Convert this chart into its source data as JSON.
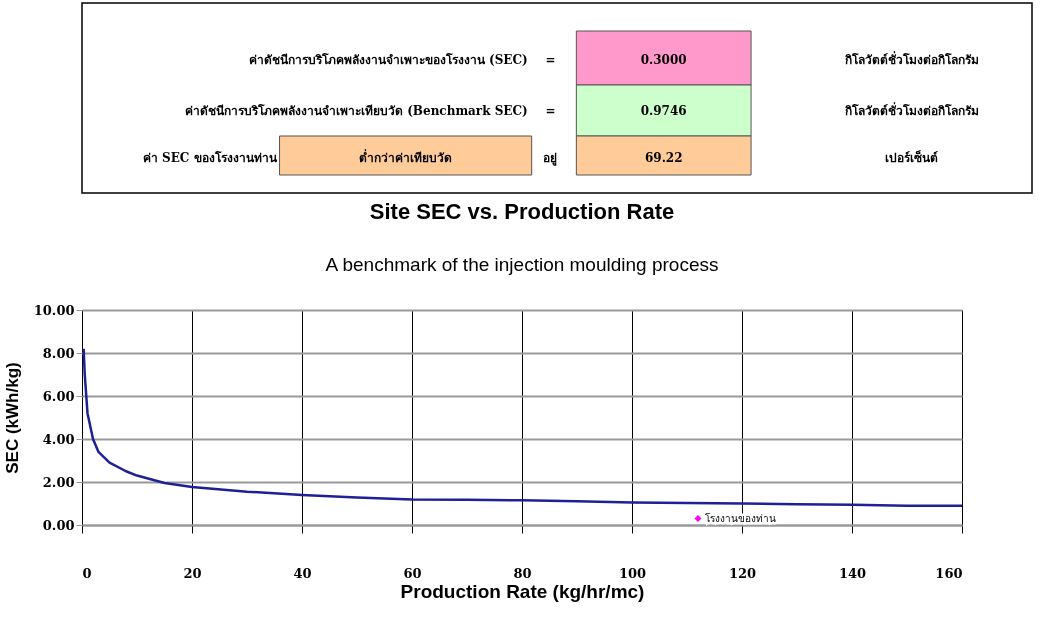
{
  "chart_data": [
    {
      "type": "other",
      "annotations": [
        "ค่าดัชนีการบริโภคพลังงานจำเพาะของโรงงาน (SEC)",
        "=",
        "0.3000",
        "กิโลวัตต์ชั่วโมงต่อกิโลกรัม",
        "ค่าดัชนีการบริโภคพลังงานจำเพาะเทียบวัด (Benchmark SEC)",
        "=",
        "0.9746",
        "กิโลวัตต์ชั่วโมงต่อกิโลกรัม",
        "ค่า SEC ของโรงงานท่าน",
        "ต่ำกว่าค่าเทียบวัด",
        "อยู่",
        "69.22",
        "เปอร์เซ็นต์"
      ],
      "colors": [
        null,
        null,
        "#ff99cc",
        null,
        null,
        null,
        "#ccffcc",
        null,
        null,
        "#ffcc99",
        null,
        "#ffcc99",
        null
      ]
    },
    {
      "type": "line",
      "title": "Site SEC vs. Production Rate",
      "subtitle": "A benchmark of the injection moulding process",
      "xlabel": "Production Rate (kg/hr/mc)",
      "ylabel": "SEC (kWh/kg)",
      "xlim": [
        0,
        160
      ],
      "xticks": [
        0,
        20,
        40,
        60,
        80,
        100,
        120,
        140,
        160
      ],
      "ylim": [
        0,
        10
      ],
      "yticks": [
        {
          "value": 0,
          "label": "0.00"
        },
        {
          "value": 2,
          "label": "2.00"
        },
        {
          "value": 4,
          "label": "4.00"
        },
        {
          "value": 6,
          "label": "6.00"
        },
        {
          "value": 8,
          "label": "8.00"
        },
        {
          "value": 10,
          "label": "10.00"
        }
      ],
      "grid": true,
      "series": [
        {
          "type": "line",
          "color": "#1f1f96",
          "marker": "none",
          "x": [
            0.3,
            0.5,
            1,
            2,
            3,
            5,
            8,
            10,
            15,
            20,
            30,
            40,
            50,
            60,
            70,
            80,
            90,
            100,
            110,
            120,
            130,
            140,
            150,
            160
          ],
          "values": [
            8.2,
            7,
            5.2,
            4,
            3.4,
            2.9,
            2.5,
            2.3,
            1.95,
            1.77,
            1.55,
            1.39,
            1.28,
            1.19,
            1.17,
            1.15,
            1.1,
            1.05,
            1.02,
            1,
            0.97,
            0.94,
            0.9,
            0.89
          ]
        },
        {
          "type": "scatter",
          "name": "โรงงานของท่าน",
          "color": "#ff00ff",
          "marker": "diamond",
          "x": [
            112
          ],
          "values": [
            0.3
          ]
        }
      ]
    }
  ]
}
